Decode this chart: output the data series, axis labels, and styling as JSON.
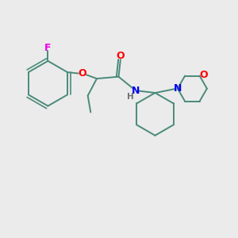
{
  "background_color": "#ebebeb",
  "bond_color": "#4a8a7a",
  "atom_colors": {
    "F": "#ee00ee",
    "O": "#ff0000",
    "N": "#0000ee",
    "H": "#707070",
    "C": "#4a8a7a"
  },
  "line_width": 1.4,
  "figsize": [
    3.0,
    3.0
  ],
  "dpi": 100
}
